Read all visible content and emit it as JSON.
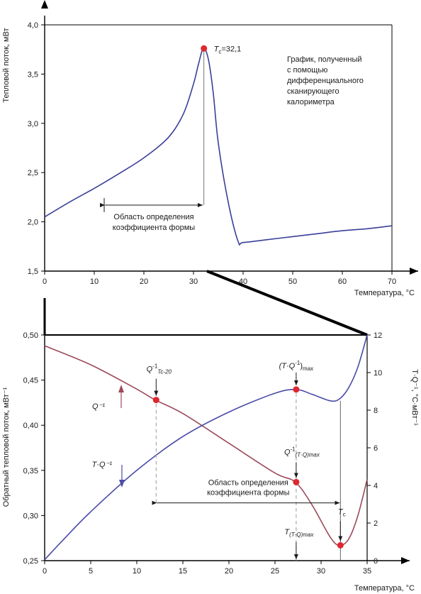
{
  "chart_data": [
    {
      "type": "line",
      "title": "",
      "xlabel": "Температура, °C",
      "ylabel": "Тепловой поток, мВт",
      "xlim": [
        0,
        70
      ],
      "ylim": [
        1.5,
        4.0
      ],
      "x_ticks": [
        "0",
        "10",
        "20",
        "30",
        "40",
        "50",
        "60",
        "70"
      ],
      "y_ticks": [
        "1,5",
        "2,0",
        "2,5",
        "3,0",
        "3,5",
        "4,0"
      ],
      "grid": false,
      "series": [
        {
          "name": "",
          "color": "#3b3f98",
          "x": [
            0,
            5,
            10,
            15,
            20,
            25,
            28,
            30,
            31,
            32,
            33,
            34,
            35,
            37,
            39,
            40,
            45,
            50,
            55,
            60,
            65,
            70
          ],
          "y": [
            2.05,
            2.2,
            2.34,
            2.49,
            2.65,
            2.86,
            3.1,
            3.4,
            3.6,
            3.76,
            3.65,
            3.3,
            2.8,
            2.2,
            1.8,
            1.79,
            1.82,
            1.85,
            1.88,
            1.91,
            1.93,
            1.96
          ]
        }
      ],
      "peak": {
        "x": 32.1,
        "y": 3.76,
        "label_T": "T",
        "label_sub": "c",
        "label_value": "=32,1"
      },
      "note": [
        "График, полученный",
        "с помощью",
        "дифференциального",
        "сканирующего",
        "калориметра"
      ],
      "range_annotation": {
        "x_from": 12,
        "x_to": 32,
        "y": 2.17,
        "lines": [
          "Область определения",
          "коэффициента формы"
        ]
      }
    },
    {
      "type": "line",
      "title": "",
      "xlabel": "Температура, °C",
      "ylabel": "Обратный тепловой поток, мВт⁻¹",
      "y2label": "T·Q⁻¹, °C·мВт⁻¹",
      "xlim": [
        0,
        35
      ],
      "ylim": [
        0.25,
        0.5
      ],
      "y2lim": [
        0,
        12
      ],
      "x_ticks": [
        "0",
        "5",
        "10",
        "15",
        "20",
        "25",
        "30",
        "35"
      ],
      "y_ticks": [
        "0,25",
        "0,30",
        "0,35",
        "0,40",
        "0,45",
        "0,50"
      ],
      "y2_ticks": [
        "0",
        "2",
        "4",
        "6",
        "8",
        "10",
        "12"
      ],
      "grid": false,
      "series": [
        {
          "name": "Q⁻¹",
          "axis": "left",
          "color": "#9c4a5a",
          "x": [
            0,
            5,
            10,
            12,
            15,
            20,
            25,
            27.2,
            29,
            31,
            32,
            33,
            34,
            35
          ],
          "y": [
            0.488,
            0.467,
            0.44,
            0.428,
            0.413,
            0.38,
            0.347,
            0.337,
            0.312,
            0.276,
            0.267,
            0.274,
            0.3,
            0.34
          ]
        },
        {
          "name": "T·Q⁻¹",
          "axis": "right",
          "color": "#4a4ba8",
          "x": [
            0,
            2,
            5,
            10,
            15,
            20,
            25,
            27.3,
            29,
            31,
            32,
            33,
            34,
            35
          ],
          "y": [
            0.05,
            1.1,
            2.6,
            4.8,
            6.6,
            7.9,
            8.9,
            9.1,
            8.85,
            8.5,
            8.6,
            9.2,
            10.3,
            12
          ]
        }
      ],
      "points": [
        {
          "series": "Q⁻¹",
          "x": 12.1,
          "y": 0.428,
          "label_main": "Q",
          "label_sup": "-1",
          "label_sub": "Tc-20"
        },
        {
          "series": "T·Q⁻¹",
          "x": 27.3,
          "y2": 9.1,
          "label_main": "(T·Q",
          "label_sup": "-1",
          "label_close": ")",
          "label_sub": "max"
        },
        {
          "series": "Q⁻¹",
          "x": 27.3,
          "y": 0.337,
          "label_main": "Q",
          "label_sup": "-1",
          "label_sub": "(T·Q)max"
        },
        {
          "series": "Q⁻¹",
          "x": 32.1,
          "y": 0.267,
          "label_main": "T",
          "label_sub": "c"
        }
      ],
      "x_markers": [
        {
          "x": 27.3,
          "label_main": "T",
          "label_sub": "(T·Q)max"
        }
      ],
      "range_annotation": {
        "x_from": 12.1,
        "x_to": 32.1,
        "y": 0.314,
        "lines": [
          "Область определения",
          "коэффициента формы"
        ]
      }
    }
  ]
}
